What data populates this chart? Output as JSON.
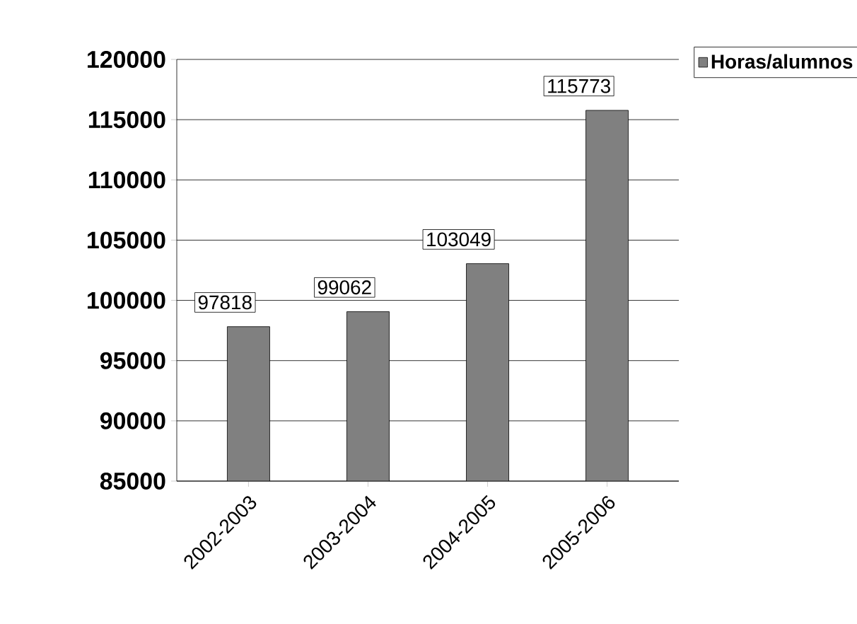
{
  "chart_data": {
    "type": "bar",
    "categories": [
      "2002-2003",
      "2003-2004",
      "2004-2005",
      "2005-2006"
    ],
    "series": [
      {
        "name": "Horas/alumnos",
        "color": "#808080",
        "values": [
          97818,
          99062,
          103049,
          115773
        ]
      }
    ],
    "ylim": [
      85000,
      120000
    ],
    "yticks": [
      85000,
      90000,
      95000,
      100000,
      105000,
      110000,
      115000,
      120000
    ],
    "grid": "y",
    "legend": "top right",
    "data_labels": true
  }
}
